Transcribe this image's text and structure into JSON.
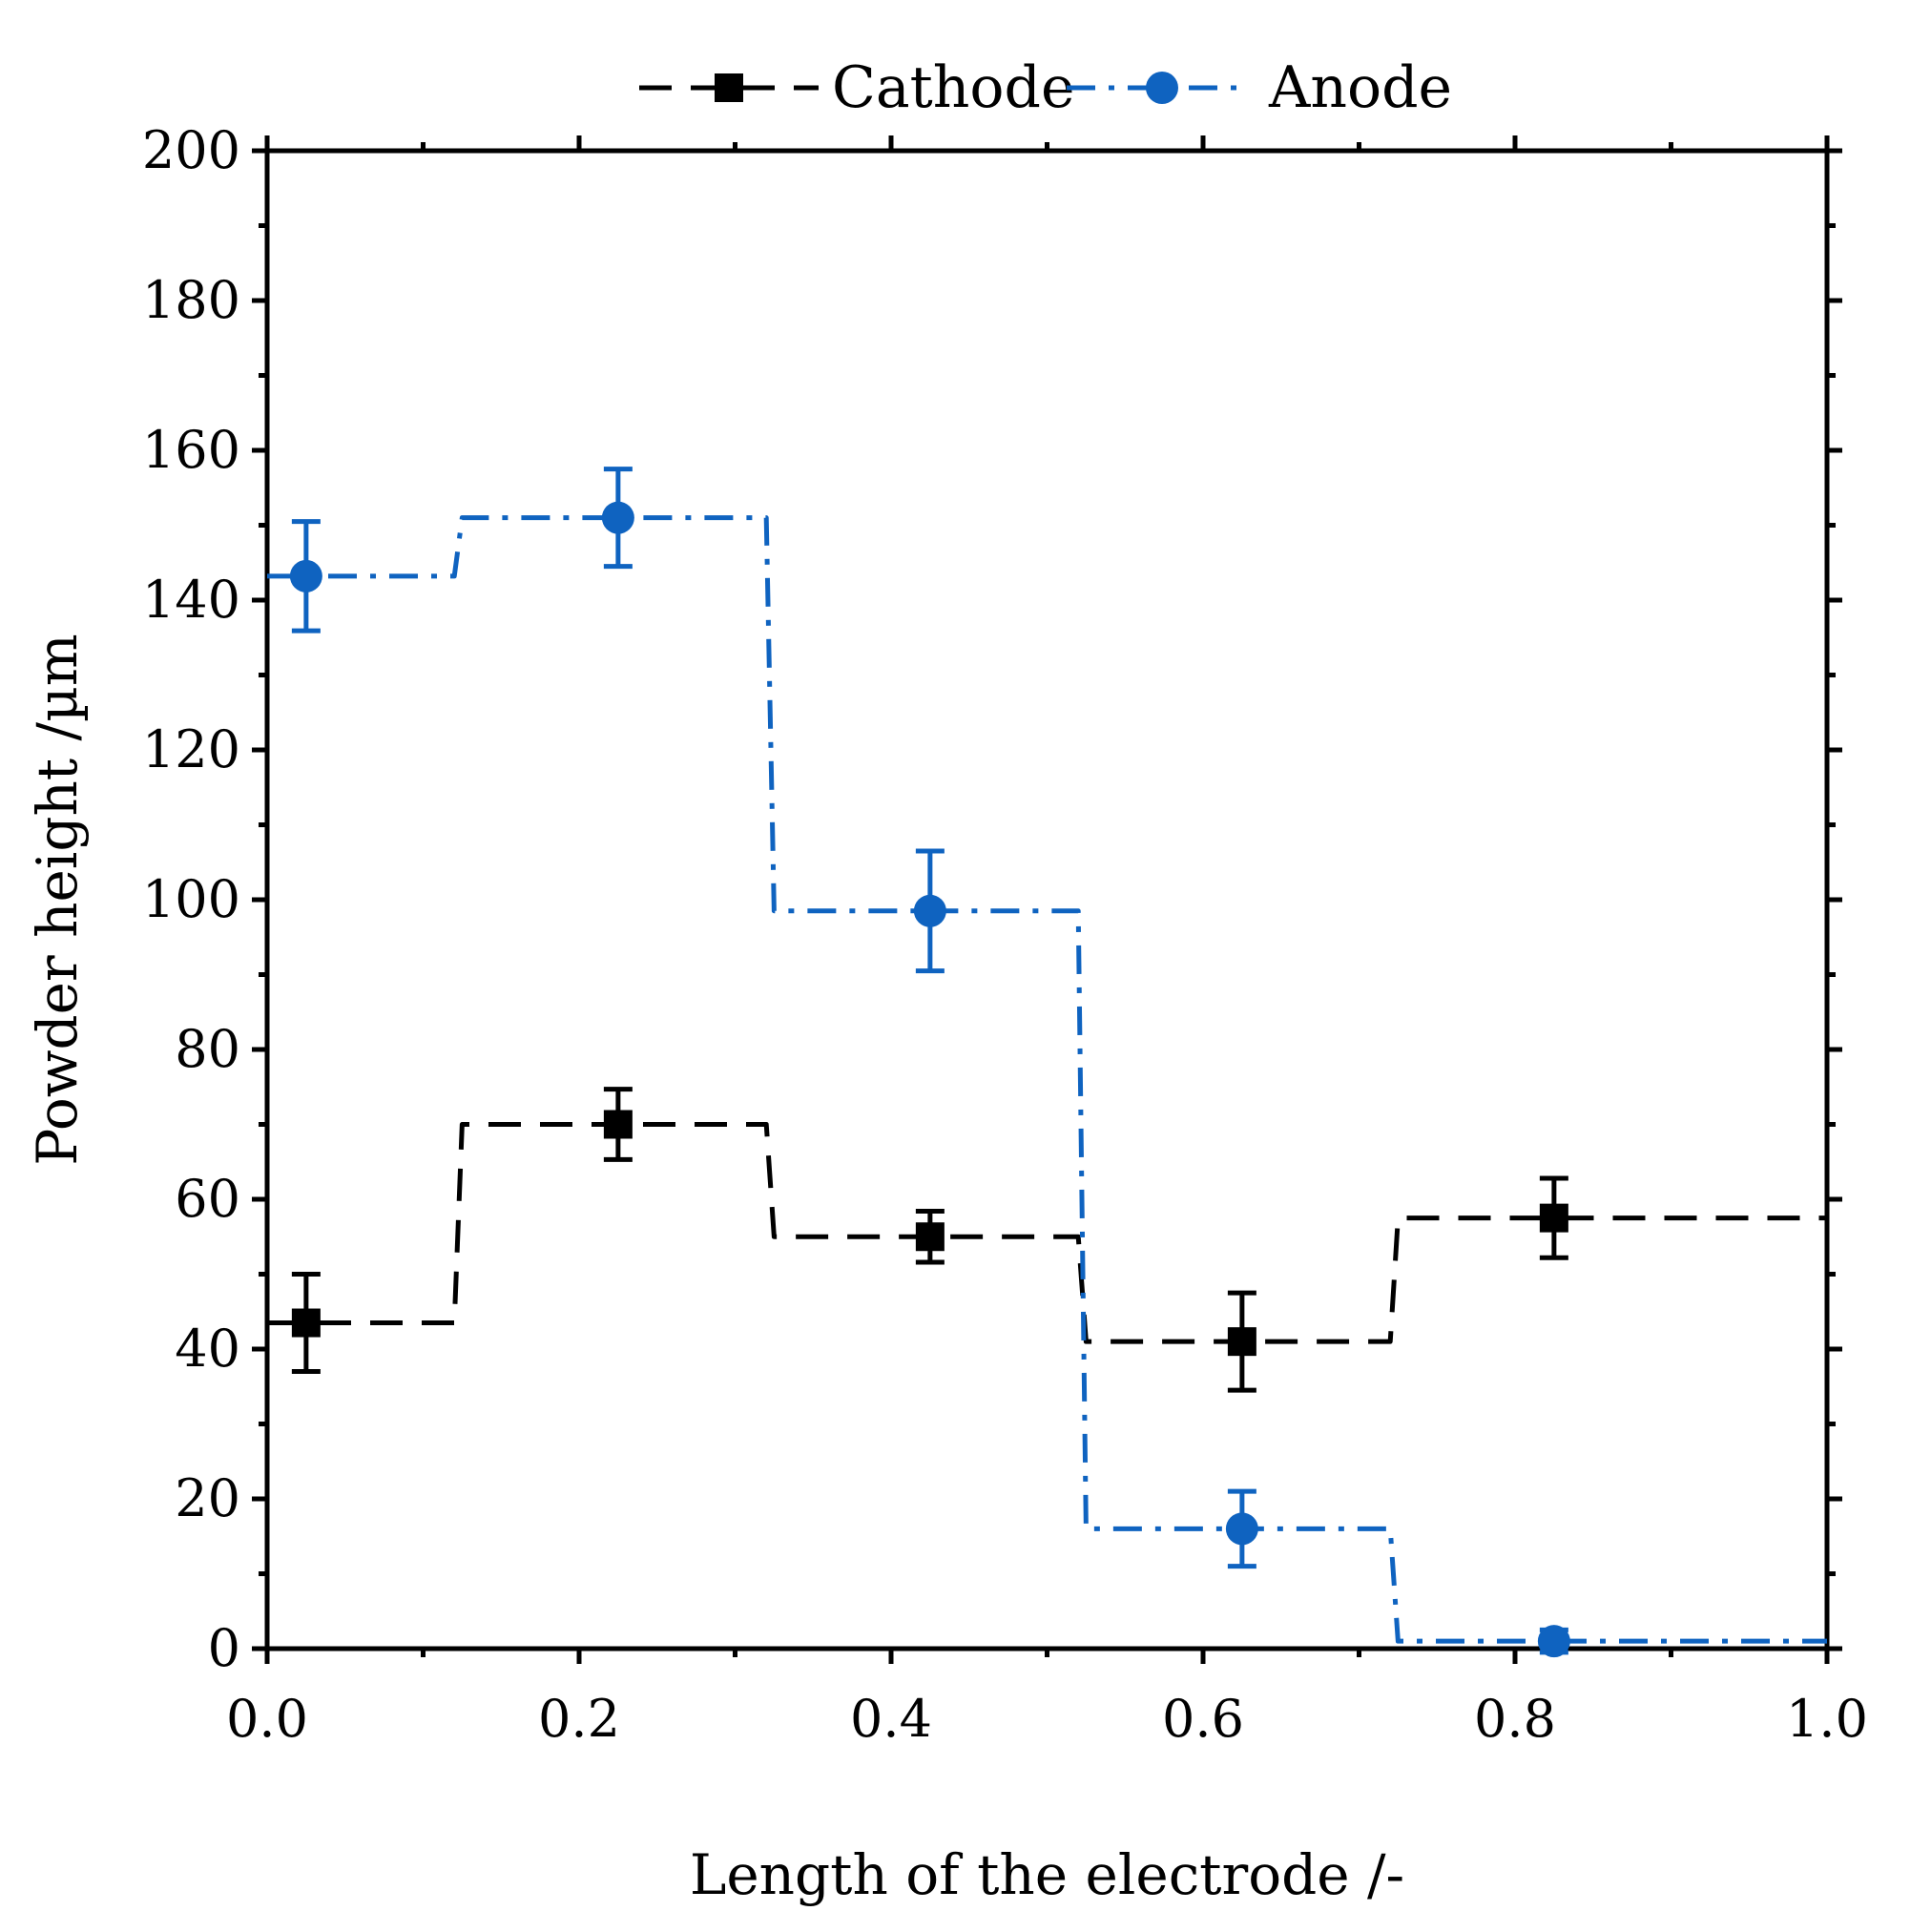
{
  "chart_data": {
    "type": "line",
    "title": "",
    "xlabel": "Length of the electrode /-",
    "ylabel": "Powder height /µm",
    "xlim": [
      0.0,
      1.0
    ],
    "ylim": [
      0,
      200
    ],
    "x_ticks": [
      0.0,
      0.2,
      0.4,
      0.6,
      0.8,
      1.0
    ],
    "x_tick_labels": [
      "0.0",
      "0.2",
      "0.4",
      "0.6",
      "0.8",
      "1.0"
    ],
    "y_ticks": [
      0,
      20,
      40,
      60,
      80,
      100,
      120,
      140,
      160,
      180,
      200
    ],
    "y_tick_labels": [
      "0",
      "20",
      "40",
      "60",
      "80",
      "100",
      "120",
      "140",
      "160",
      "180",
      "200"
    ],
    "grid": false,
    "legend_position": "top-center",
    "step_edges": [
      0.0,
      0.12,
      0.125,
      0.32,
      0.325,
      0.52,
      0.525,
      0.72,
      0.725,
      1.0
    ],
    "series": [
      {
        "name": "Cathode",
        "color": "#000000",
        "marker": "square",
        "line_style": "dashed",
        "x": [
          0.025,
          0.225,
          0.425,
          0.625,
          0.825
        ],
        "y": [
          43.5,
          70,
          55,
          41,
          57.5
        ],
        "error": [
          6.5,
          4.7,
          3.4,
          6.5,
          5.3
        ],
        "step_y": [
          43.5,
          43.5,
          70,
          70,
          55,
          55,
          41,
          41,
          57.5,
          57.5
        ]
      },
      {
        "name": "Anode",
        "color": "#0f63c0",
        "marker": "circle",
        "line_style": "dash-dot",
        "x": [
          0.025,
          0.225,
          0.425,
          0.625,
          0.825
        ],
        "y": [
          143.2,
          151,
          98.5,
          16,
          1
        ],
        "error": [
          7.3,
          6.5,
          8,
          5,
          1.5
        ],
        "step_y": [
          143.2,
          143.2,
          151,
          151,
          98.5,
          98.5,
          16,
          16,
          1,
          1
        ]
      }
    ]
  }
}
